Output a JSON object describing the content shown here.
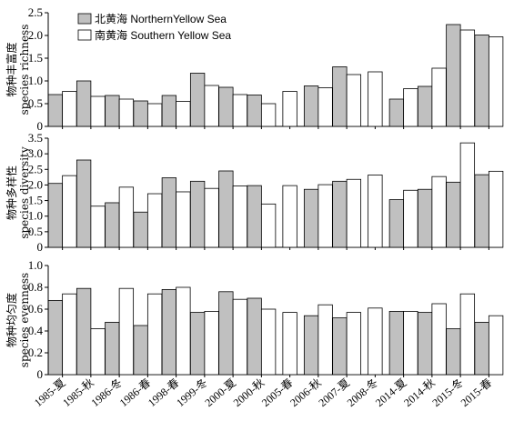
{
  "colors": {
    "northern": "#c0c0c0",
    "southern": "#ffffff",
    "stroke": "#000000"
  },
  "legend": {
    "northern_label": "北黄海 NorthernYellow Sea",
    "southern_label": "南黄海 Southern Yellow Sea",
    "position": "top-left"
  },
  "chart_data": [
    {
      "type": "bar",
      "panel": "top",
      "ylabel_cn": "物种丰富度",
      "ylabel_en": "species richness",
      "ylim": [
        0,
        2.5
      ],
      "yticks": [
        "0",
        "0.5",
        "1.0",
        "1.5",
        "2.0",
        "2.5"
      ],
      "categories": [
        "1985-夏",
        "1985-秋",
        "1986-冬",
        "1986-春",
        "1998-春",
        "1999-冬",
        "2000-夏",
        "2000-秋",
        "2005-春",
        "2006-秋",
        "2007-夏",
        "2008-冬",
        "2014-夏",
        "2014-秋",
        "2015-冬",
        "2015-春"
      ],
      "series": [
        {
          "name": "北黄海 NorthernYellow Sea",
          "values": [
            0.7,
            1.0,
            0.68,
            0.56,
            0.68,
            1.17,
            0.86,
            0.69,
            null,
            0.89,
            1.31,
            null,
            0.6,
            0.88,
            2.24,
            2.01
          ]
        },
        {
          "name": "南黄海 Southern Yellow Sea",
          "values": [
            0.77,
            0.66,
            0.6,
            0.5,
            0.55,
            0.9,
            0.7,
            0.5,
            0.77,
            0.85,
            1.14,
            1.2,
            0.83,
            1.28,
            2.12,
            1.97
          ]
        }
      ]
    },
    {
      "type": "bar",
      "panel": "middle",
      "ylabel_cn": "物种多样性",
      "ylabel_en": "species diversity",
      "ylim": [
        0,
        3.5
      ],
      "yticks": [
        "0",
        "0.5",
        "1.0",
        "1.5",
        "2.0",
        "2.5",
        "3.0",
        "3.5"
      ],
      "categories": [
        "1985-夏",
        "1985-秋",
        "1986-冬",
        "1986-春",
        "1998-春",
        "1999-冬",
        "2000-夏",
        "2000-秋",
        "2005-春",
        "2006-秋",
        "2007-夏",
        "2008-冬",
        "2014-夏",
        "2014-秋",
        "2015-冬",
        "2015-春"
      ],
      "series": [
        {
          "name": "北黄海 NorthernYellow Sea",
          "values": [
            2.05,
            2.8,
            1.43,
            1.13,
            2.23,
            2.12,
            2.45,
            1.98,
            null,
            1.86,
            2.12,
            null,
            1.53,
            1.86,
            2.09,
            2.33
          ]
        },
        {
          "name": "南黄海 Southern Yellow Sea",
          "values": [
            2.3,
            1.32,
            1.93,
            1.72,
            1.78,
            1.89,
            1.97,
            1.39,
            1.98,
            2.01,
            2.18,
            2.32,
            1.83,
            2.27,
            3.35,
            2.44
          ]
        }
      ]
    },
    {
      "type": "bar",
      "panel": "bottom",
      "ylabel_cn": "物种均匀度",
      "ylabel_en": "species evenness",
      "ylim": [
        0,
        1.0
      ],
      "yticks": [
        "0",
        "0.2",
        "0.4",
        "0.6",
        "0.8",
        "1.0"
      ],
      "categories": [
        "1985-夏",
        "1985-秋",
        "1986-冬",
        "1986-春",
        "1998-春",
        "1999-冬",
        "2000-夏",
        "2000-秋",
        "2005-春",
        "2006-秋",
        "2007-夏",
        "2008-冬",
        "2014-夏",
        "2014-秋",
        "2015-冬",
        "2015-春"
      ],
      "series": [
        {
          "name": "北黄海 NorthernYellow Sea",
          "values": [
            0.68,
            0.79,
            0.48,
            0.45,
            0.78,
            0.57,
            0.76,
            0.7,
            null,
            0.54,
            0.52,
            null,
            0.58,
            0.57,
            0.42,
            0.48
          ]
        },
        {
          "name": "南黄海 Southern Yellow Sea",
          "values": [
            0.74,
            0.42,
            0.79,
            0.74,
            0.8,
            0.58,
            0.69,
            0.6,
            0.57,
            0.64,
            0.57,
            0.61,
            0.58,
            0.65,
            0.74,
            0.54
          ]
        }
      ]
    }
  ]
}
